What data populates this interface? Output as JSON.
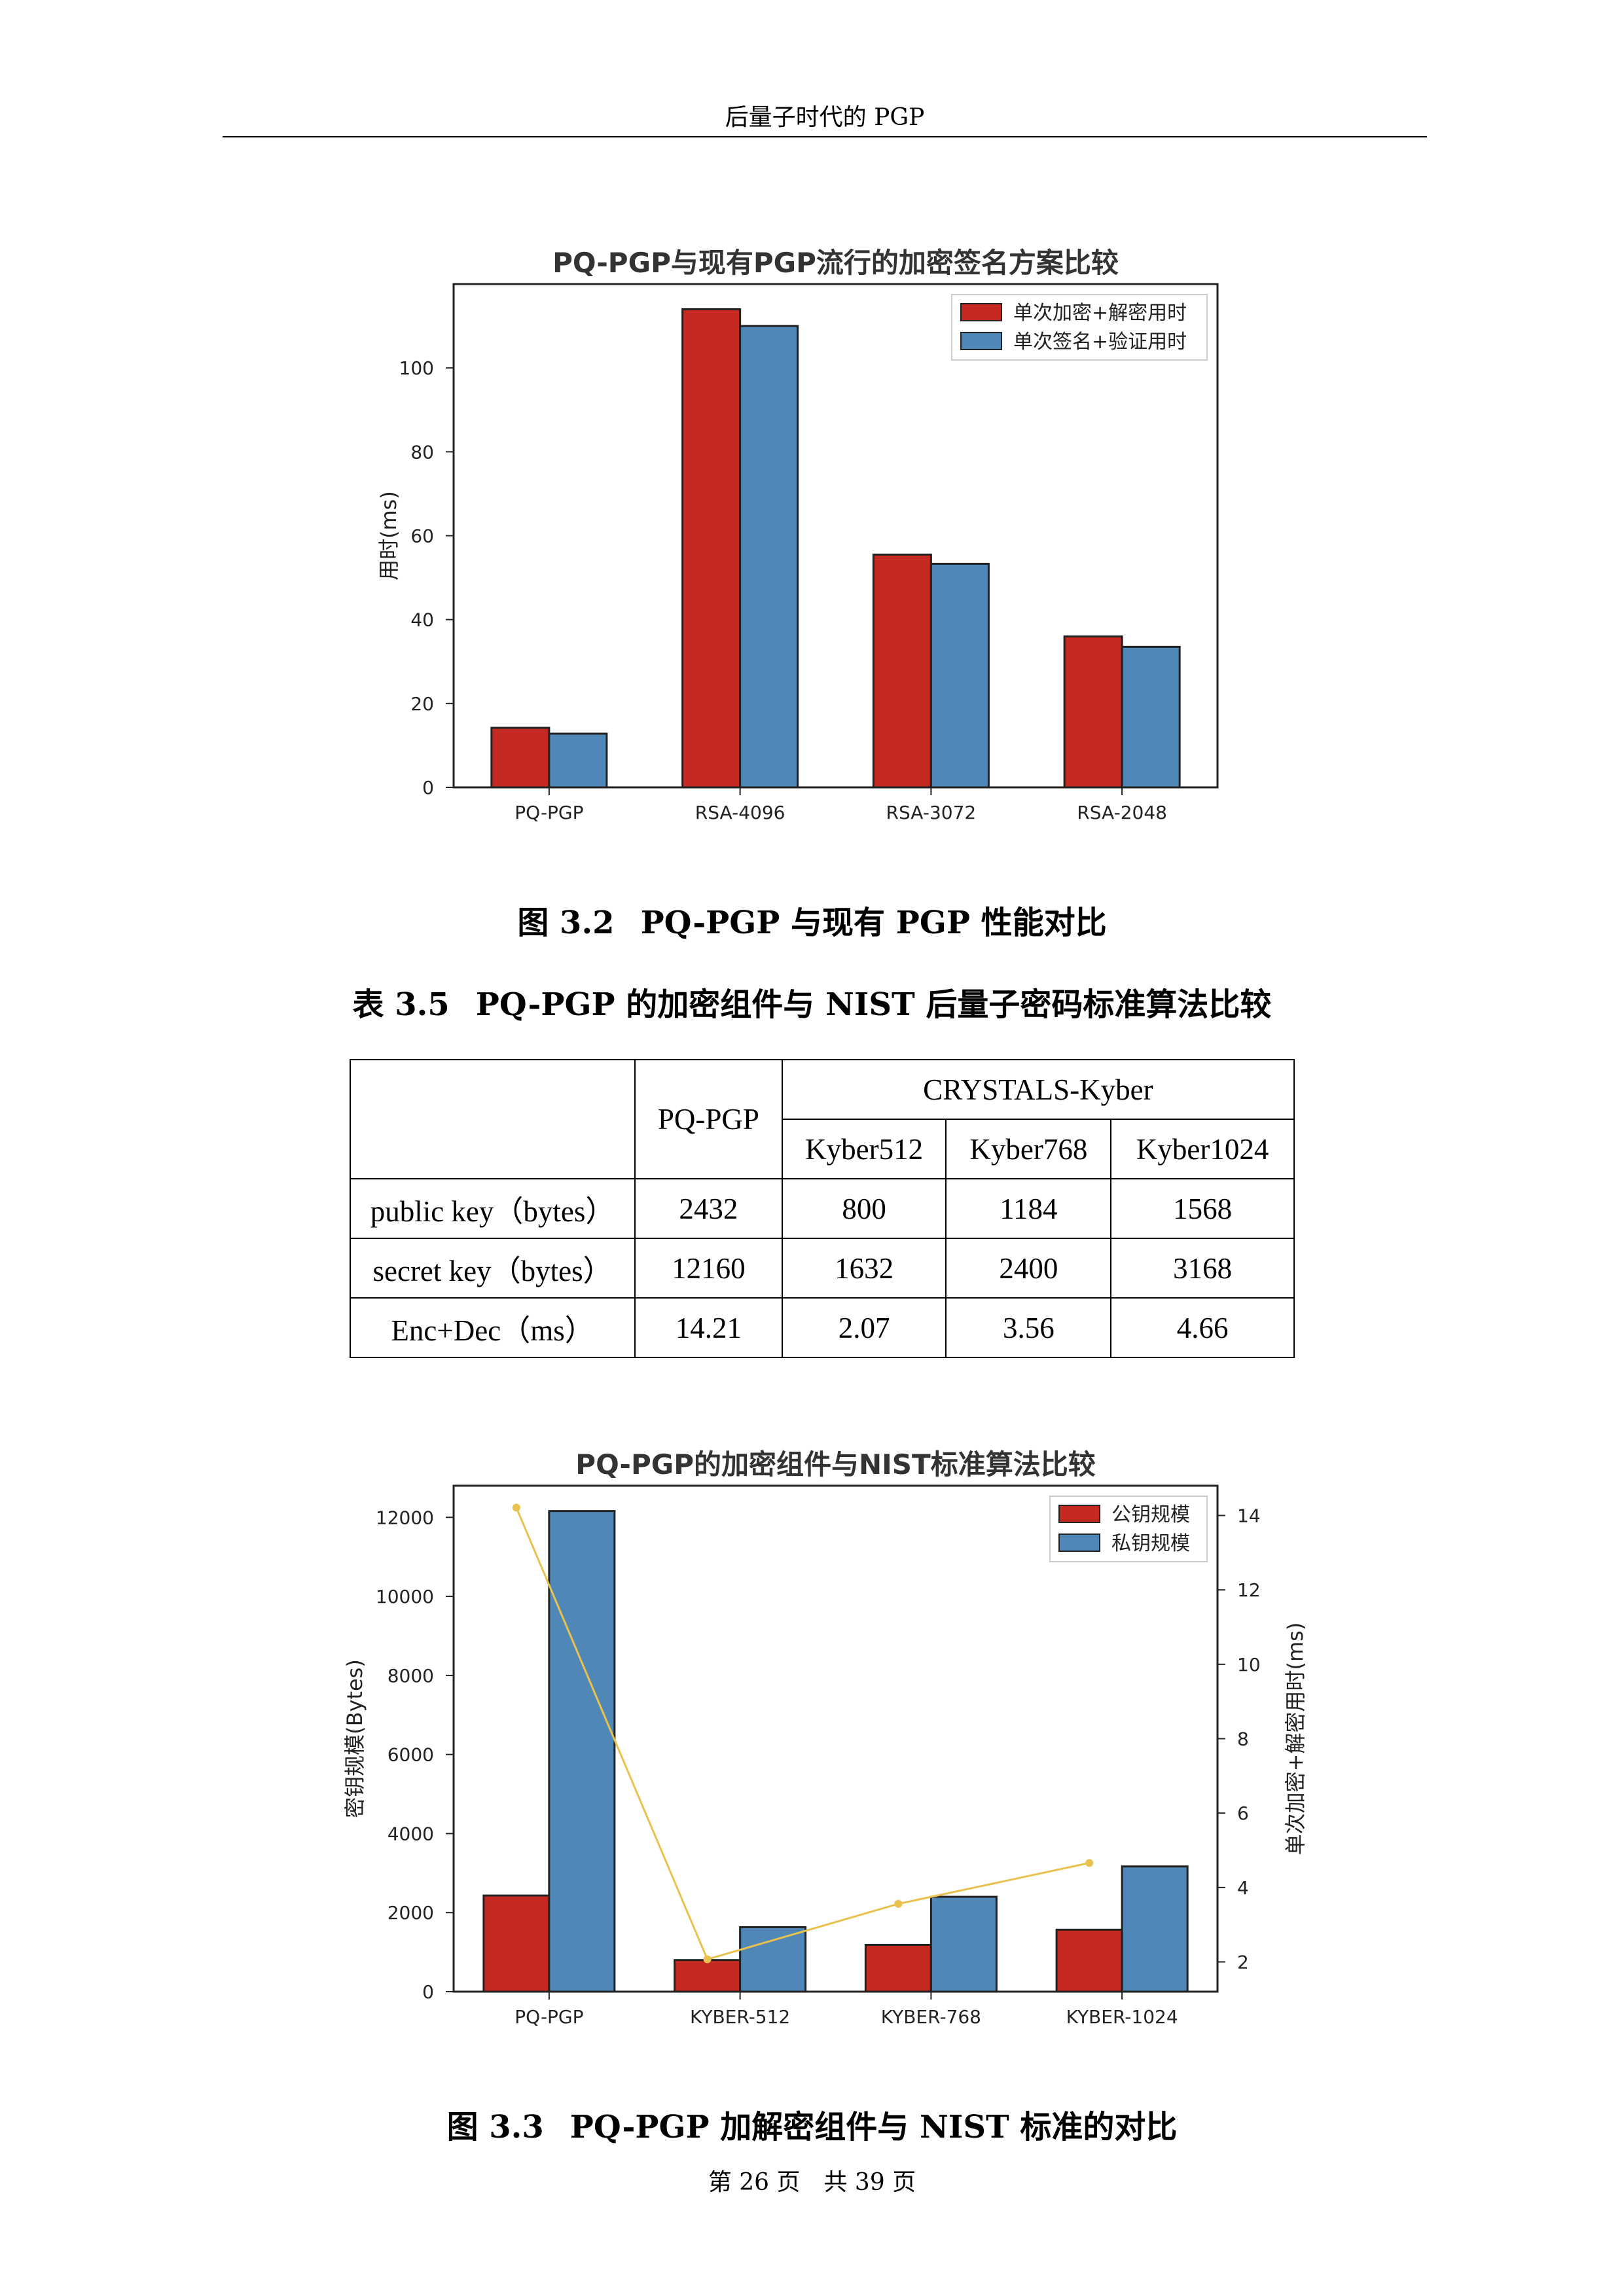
{
  "header": {
    "title": "后量子时代的 PGP"
  },
  "figure1": {
    "caption_number": "图 3.2",
    "caption_text": "PQ-PGP 与现有 PGP 性能对比"
  },
  "table": {
    "caption_number": "表 3.5",
    "caption_text": "PQ-PGP 的加密组件与 NIST 后量子密码标准算法比较",
    "header_pqpgp": "PQ-PGP",
    "header_group": "CRYSTALS-Kyber",
    "subheaders": [
      "Kyber512",
      "Kyber768",
      "Kyber1024"
    ],
    "rows": [
      {
        "label": "public key（bytes）",
        "cells": [
          "2432",
          "800",
          "1184",
          "1568"
        ]
      },
      {
        "label": "secret key（bytes）",
        "cells": [
          "12160",
          "1632",
          "2400",
          "3168"
        ]
      },
      {
        "label": "Enc+Dec（ms）",
        "cells": [
          "14.21",
          "2.07",
          "3.56",
          "4.66"
        ]
      }
    ]
  },
  "figure2": {
    "caption_number": "图 3.3",
    "caption_text": "PQ-PGP 加解密组件与 NIST 标准的对比"
  },
  "footer": {
    "text": "第 26 页　共 39 页"
  },
  "colors": {
    "red": "#c42a22",
    "blue": "#4f88b6",
    "line": "#e8c14e"
  },
  "chart_data": [
    {
      "type": "bar",
      "title": "PQ-PGP与现有PGP流行的加密签名方案比较",
      "categories": [
        "PQ-PGP",
        "RSA-4096",
        "RSA-3072",
        "RSA-2048"
      ],
      "series": [
        {
          "name": "单次加密+解密用时",
          "values": [
            14.2,
            114,
            55.5,
            36
          ]
        },
        {
          "name": "单次签名+验证用时",
          "values": [
            12.8,
            110,
            53.3,
            33.5
          ]
        }
      ],
      "ylabel": "用时(ms)",
      "ylim": [
        0,
        120
      ],
      "yticks": [
        0,
        20,
        40,
        60,
        80,
        100
      ],
      "legend": "top-right",
      "grid": false
    },
    {
      "type": "bar",
      "title": "PQ-PGP的加密组件与NIST标准算法比较",
      "categories": [
        "PQ-PGP",
        "KYBER-512",
        "KYBER-768",
        "KYBER-1024"
      ],
      "series": [
        {
          "name": "公钥规模",
          "values": [
            2432,
            800,
            1184,
            1568
          ]
        },
        {
          "name": "私钥规模",
          "values": [
            12160,
            1632,
            2400,
            3168
          ]
        }
      ],
      "line_series": {
        "values": [
          14.21,
          2.07,
          3.56,
          4.66
        ]
      },
      "ylabel": "密钥规模(Bytes)",
      "ylim": [
        0,
        12800
      ],
      "yticks": [
        0,
        2000,
        4000,
        6000,
        8000,
        10000,
        12000
      ],
      "y2label": "单次加密+解密用时(ms)",
      "y2lim": [
        1.2,
        14.8
      ],
      "y2ticks": [
        2,
        4,
        6,
        8,
        10,
        12,
        14
      ],
      "legend": "top-right",
      "grid": false
    }
  ]
}
